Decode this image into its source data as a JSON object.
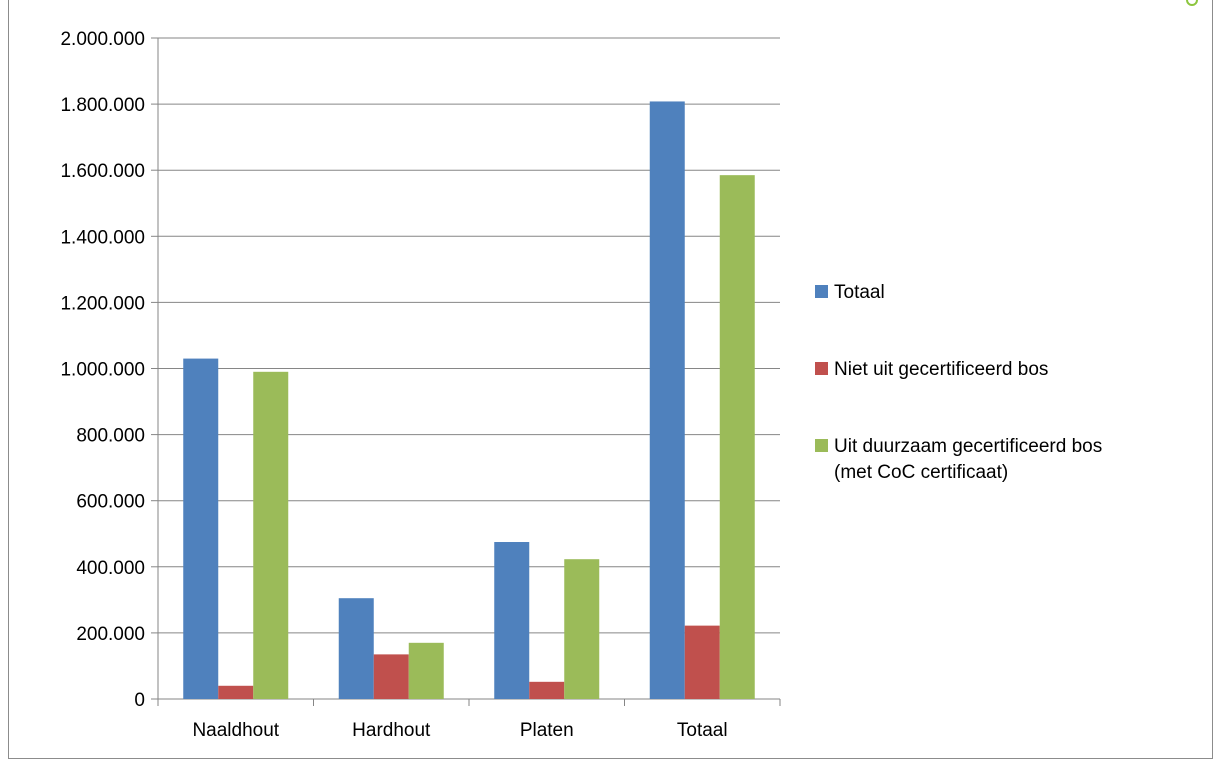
{
  "chart_data": {
    "type": "bar",
    "categories": [
      "Naaldhout",
      "Hardhout",
      "Platen",
      "Totaal"
    ],
    "series": [
      {
        "name": "Totaal",
        "color": "#4f81bd",
        "values": [
          1030000,
          305000,
          475000,
          1808000
        ]
      },
      {
        "name": "Niet uit gecertificeerd bos",
        "color": "#c0504d",
        "values": [
          40000,
          135000,
          52000,
          222000
        ]
      },
      {
        "name": "Uit duurzaam gecertificeerd bos (met CoC certificaat)",
        "color": "#9bbb59",
        "values": [
          990000,
          170000,
          423000,
          1585000
        ]
      }
    ],
    "y_ticks": [
      "0",
      "200.000",
      "400.000",
      "600.000",
      "800.000",
      "1.000.000",
      "1.200.000",
      "1.400.000",
      "1.600.000",
      "1.800.000",
      "2.000.000"
    ],
    "ylim": [
      0,
      2000000
    ],
    "grid": true,
    "legend_position": "right",
    "title": "",
    "xlabel": "",
    "ylabel": ""
  }
}
